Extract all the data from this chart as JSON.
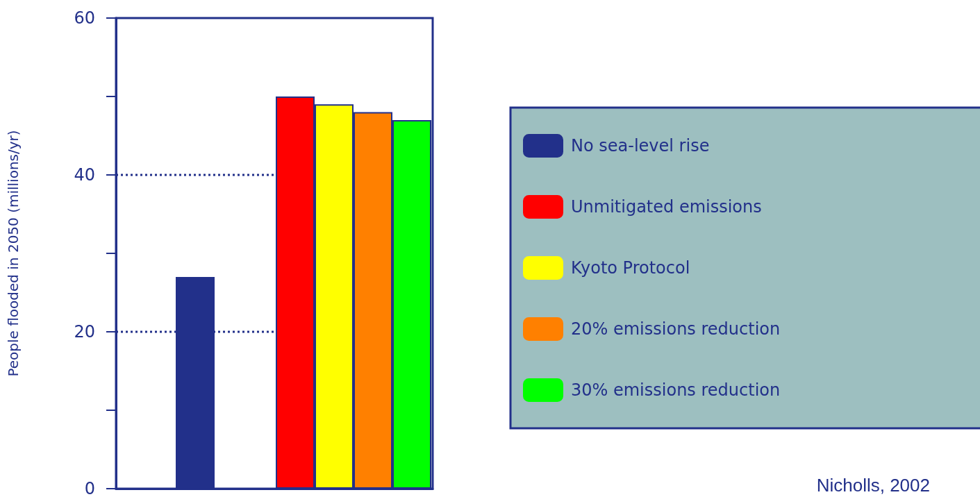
{
  "chart_data": {
    "type": "bar",
    "ylabel": "People flooded in 2050 (millions/yr)",
    "categories": [
      null,
      null
    ],
    "series": [
      {
        "name": "No sea-level rise",
        "color": "#22308a",
        "values": [
          27,
          null
        ]
      },
      {
        "name": "Unmitigated emissions",
        "color": "#ff0000",
        "values": [
          null,
          50
        ]
      },
      {
        "name": "Kyoto Protocol",
        "color": "#ffff00",
        "values": [
          null,
          49
        ]
      },
      {
        "name": "20% emissions reduction",
        "color": "#ff8000",
        "values": [
          null,
          48
        ]
      },
      {
        "name": "30% emissions reduction",
        "color": "#00ff00",
        "values": [
          null,
          47
        ]
      }
    ],
    "ylim": [
      0,
      60
    ],
    "yticks": [
      0,
      {
        "value": 10,
        "label": null
      },
      20,
      {
        "value": 30,
        "label": null
      },
      40,
      {
        "value": 50,
        "label": null
      },
      60
    ],
    "ref_lines": [
      {
        "axis": "y",
        "value": 20,
        "line_style": "dotted"
      },
      {
        "axis": "y",
        "value": 40,
        "line_style": "dotted"
      }
    ],
    "legend": "right",
    "annotations": [
      "Nicholls, 2002"
    ]
  }
}
